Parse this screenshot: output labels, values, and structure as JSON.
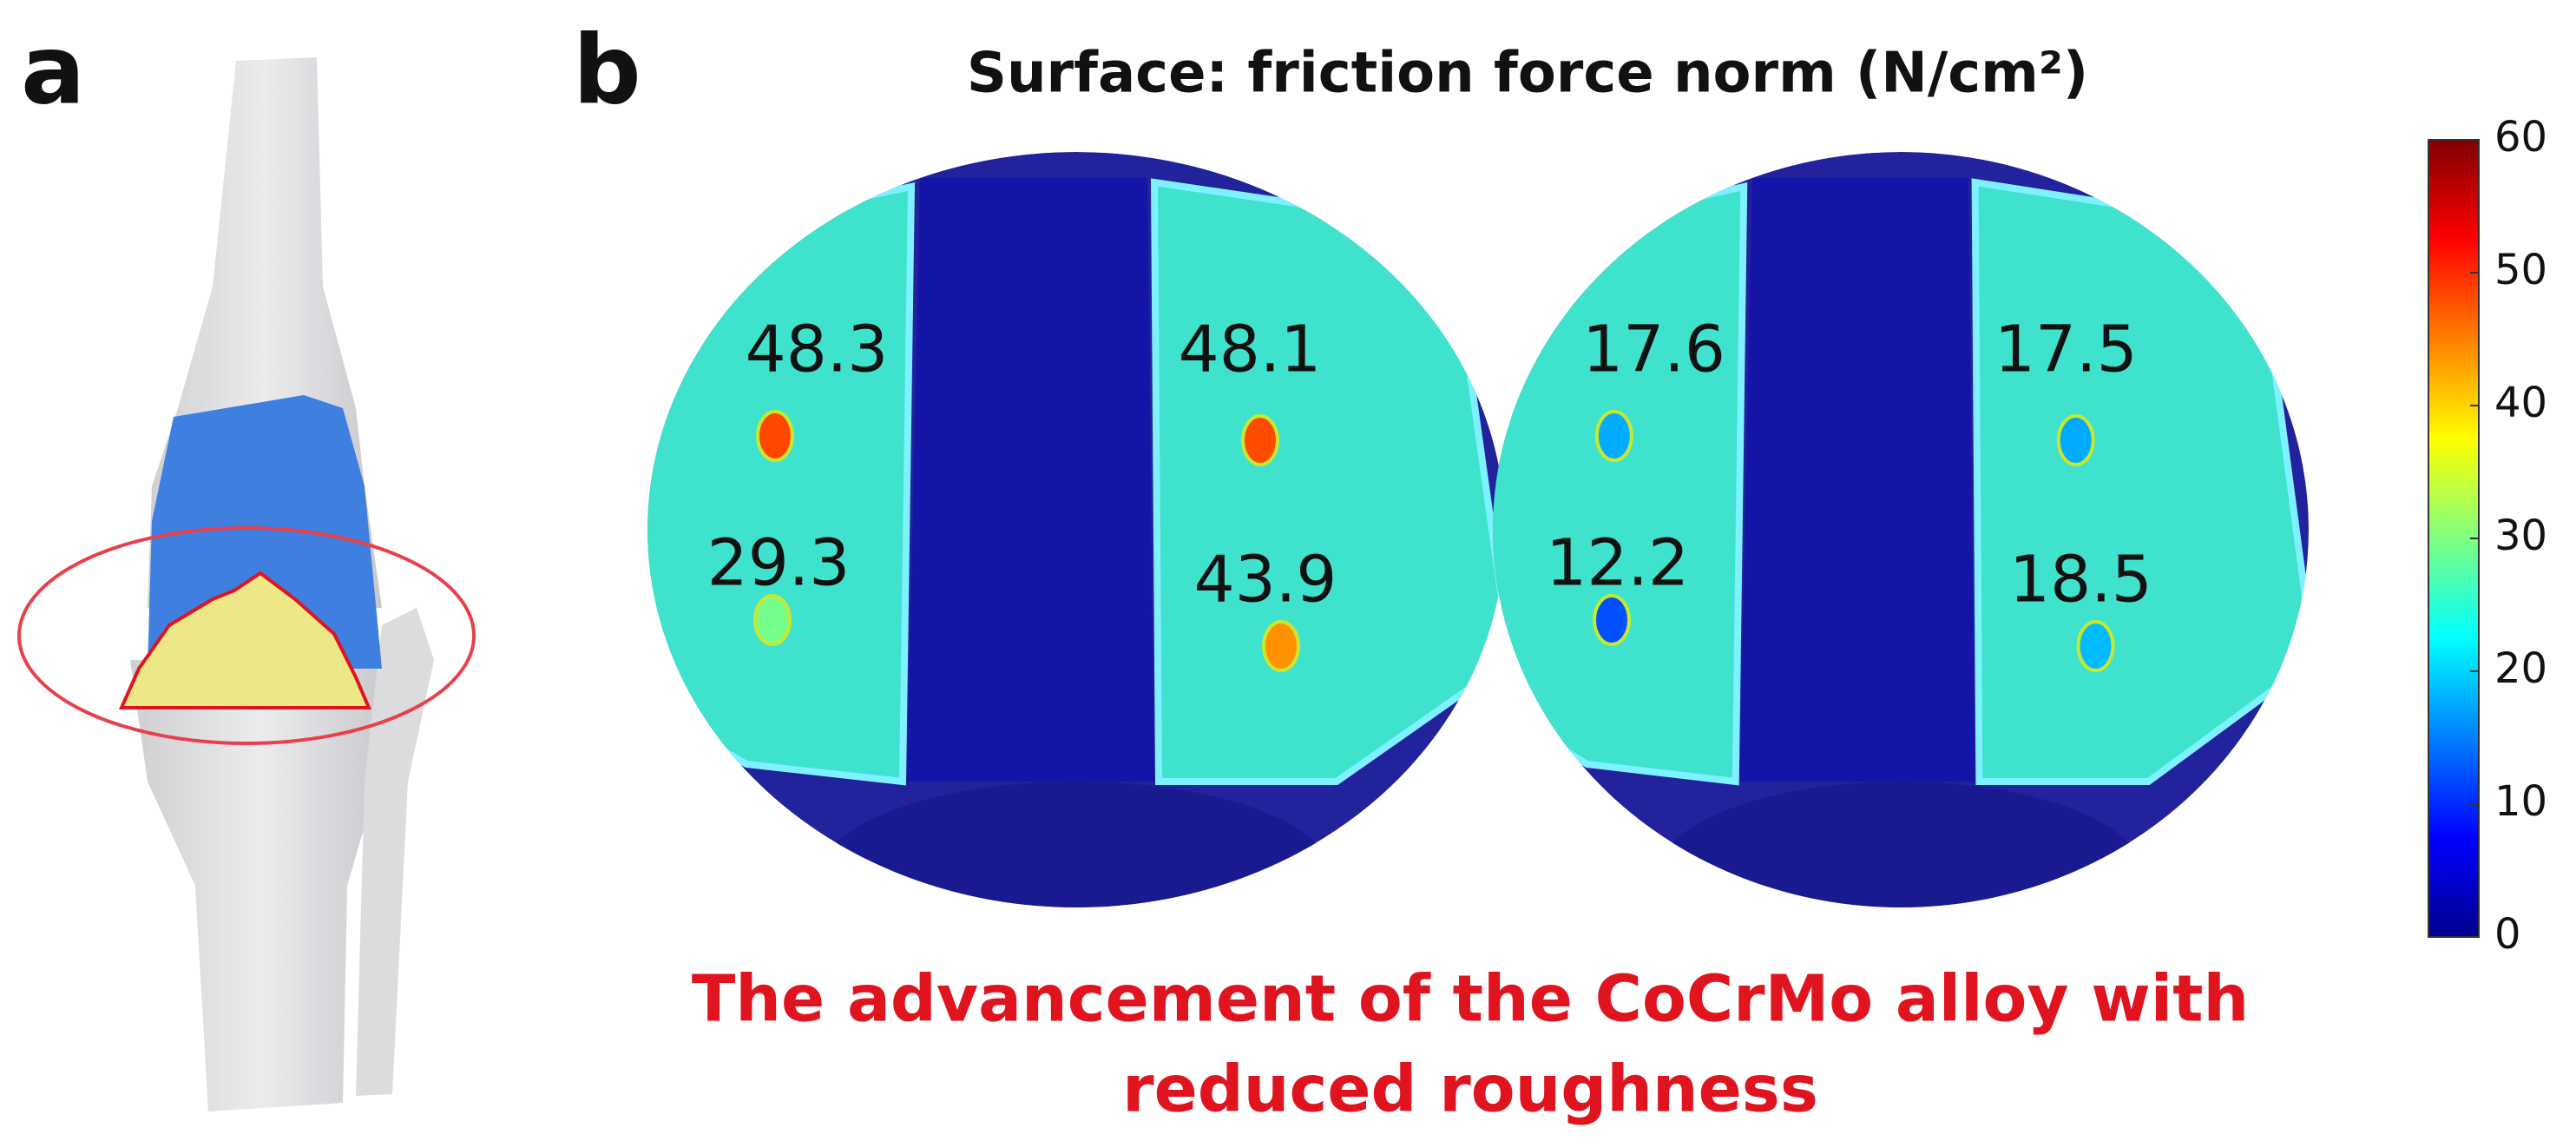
{
  "panel_a_label": "a",
  "panel_b_label": "b",
  "title": "Surface: friction force norm (N/cm²)",
  "discs": [
    {
      "spots": [
        48.3,
        48.1,
        29.3,
        43.9
      ]
    },
    {
      "spots": [
        17.6,
        17.5,
        12.2,
        18.5
      ]
    }
  ],
  "colorbar": {
    "range": [
      0,
      60
    ],
    "ticks": [
      0,
      10,
      20,
      30,
      40,
      50,
      60
    ]
  },
  "caption": [
    "The advancement of the CoCrMo alloy with",
    "reduced roughness"
  ]
}
